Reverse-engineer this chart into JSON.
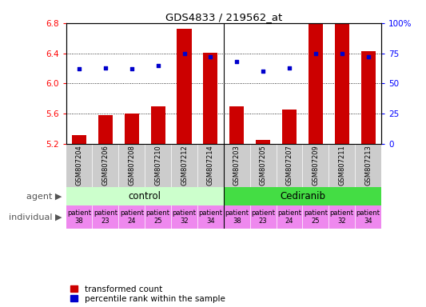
{
  "title": "GDS4833 / 219562_at",
  "samples": [
    "GSM807204",
    "GSM807206",
    "GSM807208",
    "GSM807210",
    "GSM807212",
    "GSM807214",
    "GSM807203",
    "GSM807205",
    "GSM807207",
    "GSM807209",
    "GSM807211",
    "GSM807213"
  ],
  "bar_values": [
    5.32,
    5.58,
    5.6,
    5.7,
    6.72,
    6.41,
    5.7,
    5.25,
    5.65,
    6.8,
    6.8,
    6.43
  ],
  "percentile_values": [
    62,
    63,
    62,
    65,
    75,
    72,
    68,
    60,
    63,
    75,
    75,
    72
  ],
  "ylim_left": [
    5.2,
    6.8
  ],
  "ylim_right": [
    0,
    100
  ],
  "yticks_left": [
    5.2,
    5.6,
    6.0,
    6.4,
    6.8
  ],
  "yticks_right": [
    0,
    25,
    50,
    75,
    100
  ],
  "bar_color": "#cc0000",
  "dot_color": "#0000cc",
  "bar_bottom": 5.2,
  "individual_labels": [
    "patient\n38",
    "patient\n23",
    "patient\n24",
    "patient\n25",
    "patient\n32",
    "patient\n34",
    "patient\n38",
    "patient\n23",
    "patient\n24",
    "patient\n25",
    "patient\n32",
    "patient\n34"
  ],
  "individual_color": "#ee88ee",
  "gsm_bg_color": "#cccccc",
  "legend_red": "transformed count",
  "legend_blue": "percentile rank within the sample",
  "control_bg": "#ccffcc",
  "cediranib_bg": "#44dd44",
  "gsm_label_fontsize": 6.0,
  "agent_fontsize": 8.5,
  "individual_fontsize": 6.0
}
